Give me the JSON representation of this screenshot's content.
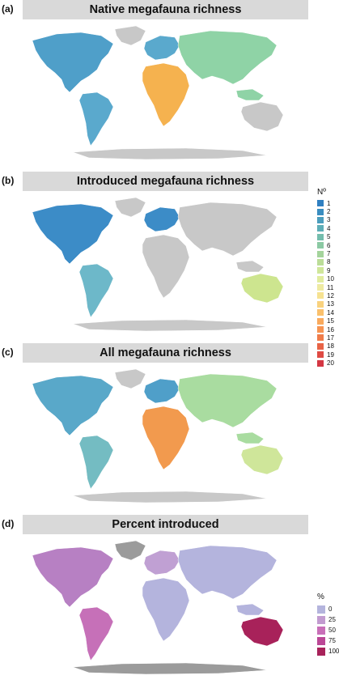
{
  "panels": [
    {
      "label": "(a)",
      "title": "Native megafauna richness",
      "map_fill": {
        "land": "#4f9fc9",
        "africa": "#f5b24f",
        "asia": "#8fd3a6",
        "aus": "#c8c8c8",
        "n_america": "#4f9fc9",
        "s_america": "#5aa9cd",
        "europe": "#5aa9cd",
        "antarctica": "#c8c8c8",
        "greenland": "#c8c8c8"
      }
    },
    {
      "label": "(b)",
      "title": "Introduced megafauna richness",
      "map_fill": {
        "land": "#c8c8c8",
        "africa": "#c8c8c8",
        "asia": "#c8c8c8",
        "aus": "#cde58f",
        "n_america": "#3c8cc7",
        "s_america": "#6db8c9",
        "europe": "#3c8cc7",
        "antarctica": "#c8c8c8",
        "greenland": "#c8c8c8"
      }
    },
    {
      "label": "(c)",
      "title": "All megafauna richness",
      "map_fill": {
        "land": "#4f9fc9",
        "africa": "#f29a4e",
        "asia": "#a9dca0",
        "aus": "#cfe69a",
        "n_america": "#59a8c9",
        "s_america": "#74bcc2",
        "europe": "#4f9fc9",
        "antarctica": "#c8c8c8",
        "greenland": "#c8c8c8"
      }
    },
    {
      "label": "(d)",
      "title": "Percent introduced",
      "map_fill": {
        "land": "#b4b4dd",
        "africa": "#b4b4dd",
        "asia": "#b4b4dd",
        "aus": "#a8225a",
        "n_america": "#b780c3",
        "s_america": "#c670b8",
        "europe": "#c0a0d3",
        "antarctica": "#9b9b9b",
        "greenland": "#9b9b9b"
      }
    }
  ],
  "legend_richness": {
    "title": "Nº",
    "items": [
      {
        "label": "1",
        "color": "#2f7fc1"
      },
      {
        "label": "2",
        "color": "#3a8dc0"
      },
      {
        "label": "3",
        "color": "#4b9dbd"
      },
      {
        "label": "4",
        "color": "#5eaeb7"
      },
      {
        "label": "5",
        "color": "#74bdad"
      },
      {
        "label": "6",
        "color": "#8bc9a3"
      },
      {
        "label": "7",
        "color": "#a4d49c"
      },
      {
        "label": "8",
        "color": "#bbdd98"
      },
      {
        "label": "9",
        "color": "#cfe69a"
      },
      {
        "label": "10",
        "color": "#e1ec9f"
      },
      {
        "label": "11",
        "color": "#eeeaa1"
      },
      {
        "label": "12",
        "color": "#f6e291"
      },
      {
        "label": "13",
        "color": "#f9d27e"
      },
      {
        "label": "14",
        "color": "#fac06c"
      },
      {
        "label": "15",
        "color": "#f9aa5d"
      },
      {
        "label": "16",
        "color": "#f69452"
      },
      {
        "label": "17",
        "color": "#f07c4a"
      },
      {
        "label": "18",
        "color": "#e86346"
      },
      {
        "label": "19",
        "color": "#df4b44"
      },
      {
        "label": "20",
        "color": "#d43743"
      }
    ]
  },
  "legend_percent": {
    "title": "%",
    "items": [
      {
        "label": "0",
        "color": "#b4b4dd"
      },
      {
        "label": "25",
        "color": "#c29bd0"
      },
      {
        "label": "50",
        "color": "#c86fb8"
      },
      {
        "label": "75",
        "color": "#bb4796"
      },
      {
        "label": "100",
        "color": "#a8225a"
      }
    ]
  }
}
